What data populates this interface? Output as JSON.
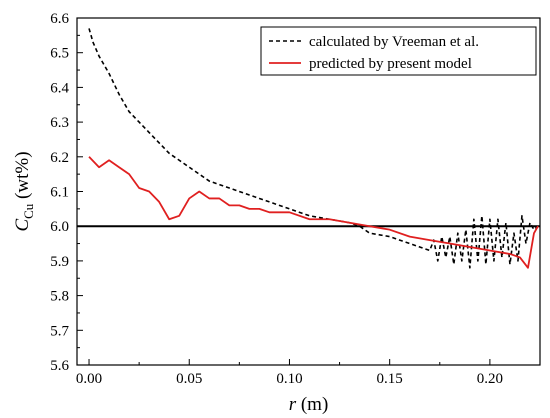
{
  "chart_data": {
    "type": "line",
    "xlabel": {
      "var": "r",
      "unit": " (m)"
    },
    "ylabel": {
      "var": "C",
      "sub": "Cu",
      "unit": " (wt%)"
    },
    "xlim": [
      -0.006,
      0.225
    ],
    "ylim": [
      5.6,
      6.6
    ],
    "xticks": [
      0.0,
      0.05,
      0.1,
      0.15,
      0.2
    ],
    "xtick_labels": [
      "0.00",
      "0.05",
      "0.10",
      "0.15",
      "0.20"
    ],
    "yticks": [
      5.6,
      5.7,
      5.8,
      5.9,
      6.0,
      6.1,
      6.2,
      6.3,
      6.4,
      6.5,
      6.6
    ],
    "ytick_labels": [
      "5.6",
      "5.7",
      "5.8",
      "5.9",
      "6.0",
      "6.1",
      "6.2",
      "6.3",
      "6.4",
      "6.5",
      "6.6"
    ],
    "grid": false,
    "legend_position": "top-right",
    "reference_line": {
      "y": 6.0,
      "color": "#000000"
    },
    "series": [
      {
        "name": "calculated by Vreeman et al.",
        "style": "dashed",
        "color": "#000000",
        "points": [
          [
            0.0,
            6.57
          ],
          [
            0.002,
            6.53
          ],
          [
            0.005,
            6.49
          ],
          [
            0.01,
            6.44
          ],
          [
            0.015,
            6.38
          ],
          [
            0.02,
            6.33
          ],
          [
            0.025,
            6.3
          ],
          [
            0.03,
            6.27
          ],
          [
            0.035,
            6.24
          ],
          [
            0.04,
            6.21
          ],
          [
            0.045,
            6.19
          ],
          [
            0.05,
            6.17
          ],
          [
            0.055,
            6.15
          ],
          [
            0.06,
            6.13
          ],
          [
            0.065,
            6.12
          ],
          [
            0.07,
            6.11
          ],
          [
            0.08,
            6.09
          ],
          [
            0.09,
            6.07
          ],
          [
            0.1,
            6.05
          ],
          [
            0.11,
            6.03
          ],
          [
            0.12,
            6.02
          ],
          [
            0.13,
            6.01
          ],
          [
            0.135,
            6.0
          ],
          [
            0.14,
            5.98
          ],
          [
            0.15,
            5.97
          ],
          [
            0.16,
            5.95
          ],
          [
            0.165,
            5.94
          ],
          [
            0.17,
            5.93
          ],
          [
            0.172,
            5.96
          ],
          [
            0.174,
            5.9
          ],
          [
            0.176,
            5.97
          ],
          [
            0.178,
            5.91
          ],
          [
            0.18,
            5.97
          ],
          [
            0.182,
            5.89
          ],
          [
            0.184,
            5.98
          ],
          [
            0.186,
            5.9
          ],
          [
            0.188,
            5.99
          ],
          [
            0.19,
            5.88
          ],
          [
            0.192,
            6.02
          ],
          [
            0.194,
            5.9
          ],
          [
            0.196,
            6.03
          ],
          [
            0.198,
            5.89
          ],
          [
            0.2,
            6.02
          ],
          [
            0.202,
            5.9
          ],
          [
            0.204,
            6.02
          ],
          [
            0.206,
            5.91
          ],
          [
            0.208,
            6.01
          ],
          [
            0.21,
            5.89
          ],
          [
            0.212,
            5.98
          ],
          [
            0.214,
            5.9
          ],
          [
            0.216,
            6.03
          ],
          [
            0.218,
            5.95
          ],
          [
            0.22,
            6.01
          ],
          [
            0.222,
            5.99
          ],
          [
            0.224,
            6.0
          ]
        ]
      },
      {
        "name": "predicted by present model",
        "style": "solid",
        "color": "#e02020",
        "points": [
          [
            0.0,
            6.2
          ],
          [
            0.005,
            6.17
          ],
          [
            0.01,
            6.19
          ],
          [
            0.015,
            6.17
          ],
          [
            0.02,
            6.15
          ],
          [
            0.025,
            6.11
          ],
          [
            0.03,
            6.1
          ],
          [
            0.035,
            6.07
          ],
          [
            0.04,
            6.02
          ],
          [
            0.045,
            6.03
          ],
          [
            0.05,
            6.08
          ],
          [
            0.055,
            6.1
          ],
          [
            0.06,
            6.08
          ],
          [
            0.065,
            6.08
          ],
          [
            0.07,
            6.06
          ],
          [
            0.075,
            6.06
          ],
          [
            0.08,
            6.05
          ],
          [
            0.085,
            6.05
          ],
          [
            0.09,
            6.04
          ],
          [
            0.1,
            6.04
          ],
          [
            0.11,
            6.02
          ],
          [
            0.12,
            6.02
          ],
          [
            0.13,
            6.01
          ],
          [
            0.14,
            6.0
          ],
          [
            0.15,
            5.99
          ],
          [
            0.16,
            5.97
          ],
          [
            0.17,
            5.96
          ],
          [
            0.18,
            5.95
          ],
          [
            0.19,
            5.94
          ],
          [
            0.2,
            5.93
          ],
          [
            0.21,
            5.92
          ],
          [
            0.215,
            5.91
          ],
          [
            0.219,
            5.88
          ],
          [
            0.222,
            5.98
          ],
          [
            0.224,
            6.0
          ]
        ]
      }
    ]
  }
}
